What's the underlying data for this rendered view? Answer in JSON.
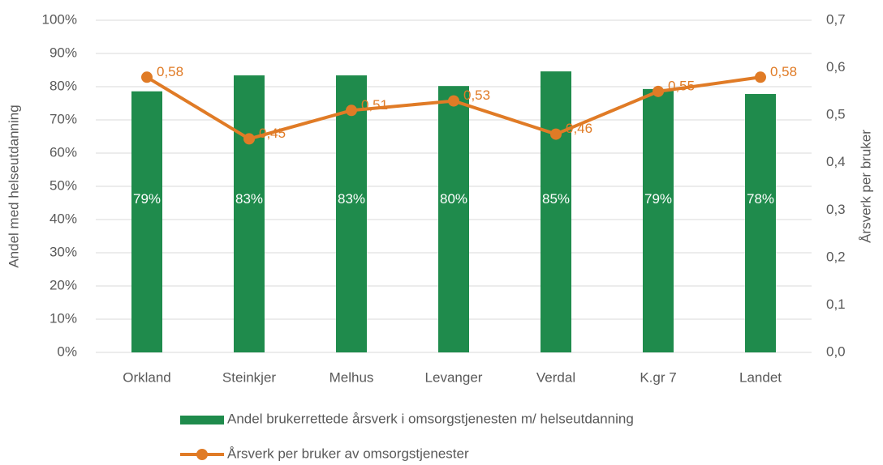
{
  "chart_data": {
    "type": "bar",
    "categories": [
      "Orkland",
      "Steinkjer",
      "Melhus",
      "Levanger",
      "Verdal",
      "K.gr 7",
      "Landet"
    ],
    "series": [
      {
        "name": "Andel brukerrettede årsverk i omsorgstjenesten m/ helseutdanning",
        "type": "bar",
        "color": "#1f8b4c",
        "values": [
          78.6,
          83.4,
          83.4,
          80.2,
          84.6,
          79.3,
          77.8
        ],
        "value_labels": [
          "79%",
          "83%",
          "83%",
          "80%",
          "85%",
          "79%",
          "78%"
        ]
      },
      {
        "name": "Årsverk per bruker av omsorgstjenester",
        "type": "line",
        "axis": "y2",
        "color": "#e07b26",
        "values": [
          0.58,
          0.45,
          0.51,
          0.53,
          0.46,
          0.55,
          0.58
        ],
        "value_labels": [
          "0,58",
          "0,45",
          "0,51",
          "0,53",
          "0,46",
          "0,55",
          "0,58"
        ]
      }
    ],
    "ylabel": "Andel med helseutdanning",
    "y2label": "Årsverk per bruker",
    "ylim": [
      0,
      100
    ],
    "yticks": [
      {
        "value": 0,
        "label": "0%"
      },
      {
        "value": 10,
        "label": "10%"
      },
      {
        "value": 20,
        "label": "20%"
      },
      {
        "value": 30,
        "label": "30%"
      },
      {
        "value": 40,
        "label": "40%"
      },
      {
        "value": 50,
        "label": "50%"
      },
      {
        "value": 60,
        "label": "60%"
      },
      {
        "value": 70,
        "label": "70%"
      },
      {
        "value": 80,
        "label": "80%"
      },
      {
        "value": 90,
        "label": "90%"
      },
      {
        "value": 100,
        "label": "100%"
      }
    ],
    "y2lim": [
      0,
      0.7
    ],
    "y2ticks": [
      {
        "value": 0,
        "label": "0,0"
      },
      {
        "value": 0.1,
        "label": "0,1"
      },
      {
        "value": 0.2,
        "label": "0,2"
      },
      {
        "value": 0.3,
        "label": "0,3"
      },
      {
        "value": 0.4,
        "label": "0,4"
      },
      {
        "value": 0.5,
        "label": "0,5"
      },
      {
        "value": 0.6,
        "label": "0,6"
      },
      {
        "value": 0.7,
        "label": "0,7"
      }
    ],
    "grid": true,
    "legend": "bottom"
  }
}
